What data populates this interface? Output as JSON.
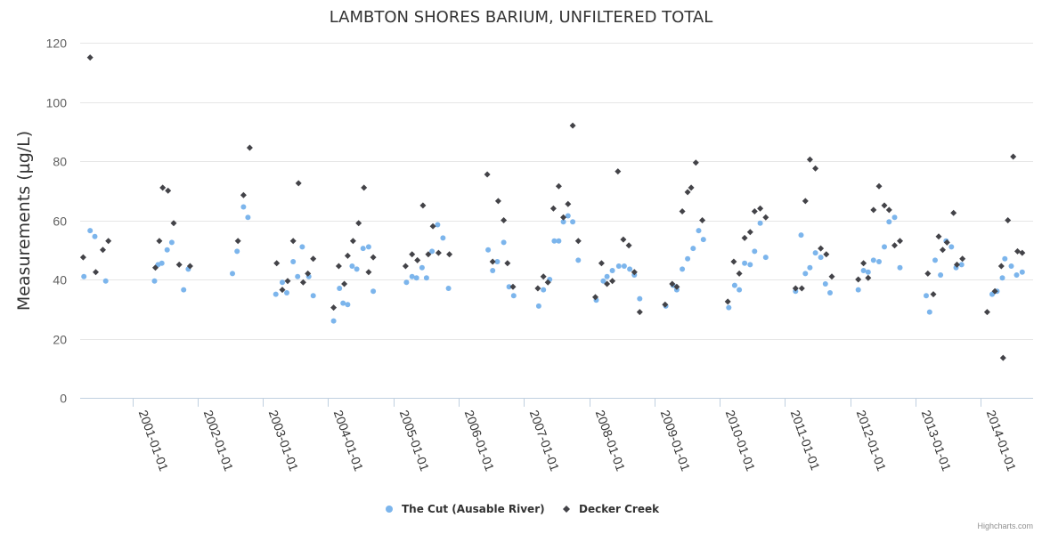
{
  "chart_data": {
    "type": "scatter",
    "title": "LAMBTON SHORES BARIUM, UNFILTERED TOTAL",
    "xlabel": "",
    "ylabel": "Measurements (µg/L)",
    "ylim": [
      0,
      120
    ],
    "yticks": [
      0,
      20,
      40,
      60,
      80,
      100,
      120
    ],
    "xlim": [
      "2000-03-15",
      "2014-10-20"
    ],
    "xticks": [
      "2001-01-01",
      "2002-01-01",
      "2003-01-01",
      "2004-01-01",
      "2005-01-01",
      "2006-01-01",
      "2007-01-01",
      "2008-01-01",
      "2009-01-01",
      "2010-01-01",
      "2011-01-01",
      "2012-01-01",
      "2013-01-01",
      "2014-01-01"
    ],
    "series": [
      {
        "name": "The Cut (Ausable River)",
        "color": "#7cb5ec",
        "marker": "circle",
        "points": [
          [
            "2000-04-05",
            41
          ],
          [
            "2000-05-10",
            56.5
          ],
          [
            "2000-06-05",
            54.5
          ],
          [
            "2000-08-05",
            39.5
          ],
          [
            "2001-05-05",
            39.5
          ],
          [
            "2001-05-25",
            45
          ],
          [
            "2001-06-15",
            45.5
          ],
          [
            "2001-07-15",
            50
          ],
          [
            "2001-08-10",
            52.5
          ],
          [
            "2001-10-15",
            36.5
          ],
          [
            "2001-11-10",
            43.5
          ],
          [
            "2002-07-15",
            42
          ],
          [
            "2002-08-10",
            49.5
          ],
          [
            "2002-09-15",
            64.5
          ],
          [
            "2002-10-10",
            61
          ],
          [
            "2003-03-15",
            35
          ],
          [
            "2003-04-20",
            39
          ],
          [
            "2003-05-15",
            35.5
          ],
          [
            "2003-06-20",
            46
          ],
          [
            "2003-07-15",
            41
          ],
          [
            "2003-08-10",
            51
          ],
          [
            "2003-09-15",
            41
          ],
          [
            "2003-10-10",
            34.5
          ],
          [
            "2004-02-01",
            26
          ],
          [
            "2004-03-05",
            37
          ],
          [
            "2004-03-25",
            32
          ],
          [
            "2004-04-20",
            31.5
          ],
          [
            "2004-05-15",
            44.5
          ],
          [
            "2004-06-10",
            43.5
          ],
          [
            "2004-07-15",
            50.5
          ],
          [
            "2004-08-15",
            51
          ],
          [
            "2004-09-10",
            36
          ],
          [
            "2005-03-15",
            39
          ],
          [
            "2005-04-15",
            41
          ],
          [
            "2005-05-10",
            40.5
          ],
          [
            "2005-06-10",
            44
          ],
          [
            "2005-07-05",
            40.5
          ],
          [
            "2005-08-05",
            49.5
          ],
          [
            "2005-09-05",
            58.5
          ],
          [
            "2005-10-05",
            54
          ],
          [
            "2005-11-05",
            37
          ],
          [
            "2006-06-15",
            50
          ],
          [
            "2006-07-10",
            43
          ],
          [
            "2006-08-05",
            46
          ],
          [
            "2006-09-10",
            52.5
          ],
          [
            "2006-10-10",
            37.5
          ],
          [
            "2006-11-05",
            34.5
          ],
          [
            "2007-03-25",
            31
          ],
          [
            "2007-04-20",
            36.5
          ],
          [
            "2007-05-25",
            40
          ],
          [
            "2007-06-20",
            53
          ],
          [
            "2007-07-15",
            53
          ],
          [
            "2007-08-10",
            59.5
          ],
          [
            "2007-09-05",
            61.5
          ],
          [
            "2007-10-01",
            59.5
          ],
          [
            "2007-11-01",
            46.5
          ],
          [
            "2008-02-10",
            33
          ],
          [
            "2008-03-20",
            39.5
          ],
          [
            "2008-04-10",
            41
          ],
          [
            "2008-05-10",
            43
          ],
          [
            "2008-06-15",
            44.5
          ],
          [
            "2008-07-15",
            44.5
          ],
          [
            "2008-08-15",
            43.5
          ],
          [
            "2008-09-10",
            41.5
          ],
          [
            "2008-10-10",
            33.5
          ],
          [
            "2009-03-05",
            31
          ],
          [
            "2009-04-15",
            38
          ],
          [
            "2009-05-05",
            36.5
          ],
          [
            "2009-06-05",
            43.5
          ],
          [
            "2009-07-05",
            47
          ],
          [
            "2009-08-05",
            50.5
          ],
          [
            "2009-09-05",
            56.5
          ],
          [
            "2009-10-01",
            53.5
          ],
          [
            "2010-02-20",
            30.5
          ],
          [
            "2010-03-25",
            38
          ],
          [
            "2010-04-20",
            36.5
          ],
          [
            "2010-05-20",
            45.5
          ],
          [
            "2010-06-20",
            45
          ],
          [
            "2010-07-15",
            49.5
          ],
          [
            "2010-08-15",
            59
          ],
          [
            "2010-09-15",
            47.5
          ],
          [
            "2011-03-01",
            36
          ],
          [
            "2011-04-01",
            55
          ],
          [
            "2011-04-25",
            42
          ],
          [
            "2011-05-20",
            44
          ],
          [
            "2011-06-20",
            49
          ],
          [
            "2011-07-20",
            47.5
          ],
          [
            "2011-08-15",
            38.5
          ],
          [
            "2011-09-10",
            35.5
          ],
          [
            "2012-02-15",
            36.5
          ],
          [
            "2012-03-15",
            43
          ],
          [
            "2012-04-10",
            42.5
          ],
          [
            "2012-05-10",
            46.5
          ],
          [
            "2012-06-10",
            46
          ],
          [
            "2012-07-10",
            51
          ],
          [
            "2012-08-05",
            59.5
          ],
          [
            "2012-09-05",
            61
          ],
          [
            "2012-10-05",
            44
          ],
          [
            "2013-03-01",
            34.5
          ],
          [
            "2013-03-20",
            29
          ],
          [
            "2013-04-20",
            46.5
          ],
          [
            "2013-05-20",
            41.5
          ],
          [
            "2013-06-20",
            53
          ],
          [
            "2013-07-20",
            51
          ],
          [
            "2013-08-15",
            44
          ],
          [
            "2013-09-15",
            45
          ],
          [
            "2014-03-05",
            35
          ],
          [
            "2014-04-01",
            36
          ],
          [
            "2014-05-01",
            40.5
          ],
          [
            "2014-05-15",
            47
          ],
          [
            "2014-06-20",
            44.5
          ],
          [
            "2014-07-20",
            41.5
          ],
          [
            "2014-08-20",
            42.5
          ]
        ]
      },
      {
        "name": "Decker Creek",
        "color": "#434348",
        "marker": "diamond",
        "points": [
          [
            "2000-04-01",
            47.5
          ],
          [
            "2000-05-10",
            115
          ],
          [
            "2000-06-10",
            42.5
          ],
          [
            "2000-07-20",
            50
          ],
          [
            "2000-08-20",
            53
          ],
          [
            "2001-05-10",
            44
          ],
          [
            "2001-06-01",
            53
          ],
          [
            "2001-06-20",
            71
          ],
          [
            "2001-07-20",
            70
          ],
          [
            "2001-08-20",
            59
          ],
          [
            "2001-09-20",
            45
          ],
          [
            "2001-11-20",
            44.5
          ],
          [
            "2002-08-15",
            53
          ],
          [
            "2002-09-15",
            68.5
          ],
          [
            "2002-10-20",
            84.5
          ],
          [
            "2003-03-20",
            45.5
          ],
          [
            "2003-04-20",
            36.5
          ],
          [
            "2003-05-20",
            39.5
          ],
          [
            "2003-06-20",
            53
          ],
          [
            "2003-07-20",
            72.5
          ],
          [
            "2003-08-15",
            39
          ],
          [
            "2003-09-10",
            42
          ],
          [
            "2003-10-10",
            47
          ],
          [
            "2004-02-01",
            30.5
          ],
          [
            "2004-03-01",
            44.5
          ],
          [
            "2004-04-01",
            38.5
          ],
          [
            "2004-04-20",
            48
          ],
          [
            "2004-05-20",
            53
          ],
          [
            "2004-06-20",
            59
          ],
          [
            "2004-07-20",
            71
          ],
          [
            "2004-08-15",
            42.5
          ],
          [
            "2004-09-10",
            47.5
          ],
          [
            "2005-03-10",
            44.5
          ],
          [
            "2005-04-15",
            48.5
          ],
          [
            "2005-05-15",
            46.5
          ],
          [
            "2005-06-15",
            65
          ],
          [
            "2005-07-15",
            48.5
          ],
          [
            "2005-08-10",
            58
          ],
          [
            "2005-09-10",
            49
          ],
          [
            "2005-11-10",
            48.5
          ],
          [
            "2006-06-10",
            75.5
          ],
          [
            "2006-07-10",
            46
          ],
          [
            "2006-08-10",
            66.5
          ],
          [
            "2006-09-10",
            60
          ],
          [
            "2006-10-01",
            45.5
          ],
          [
            "2006-11-01",
            37.5
          ],
          [
            "2007-03-20",
            37
          ],
          [
            "2007-04-20",
            41
          ],
          [
            "2007-05-15",
            39
          ],
          [
            "2007-06-15",
            64
          ],
          [
            "2007-07-15",
            71.5
          ],
          [
            "2007-08-10",
            61
          ],
          [
            "2007-09-05",
            65.5
          ],
          [
            "2007-10-01",
            92
          ],
          [
            "2007-11-01",
            53
          ],
          [
            "2008-02-05",
            34
          ],
          [
            "2008-03-10",
            45.5
          ],
          [
            "2008-04-10",
            38.5
          ],
          [
            "2008-05-10",
            39.5
          ],
          [
            "2008-06-10",
            76.5
          ],
          [
            "2008-07-10",
            53.5
          ],
          [
            "2008-08-10",
            51.5
          ],
          [
            "2008-09-10",
            42.5
          ],
          [
            "2008-10-10",
            29
          ],
          [
            "2009-03-01",
            31.5
          ],
          [
            "2009-04-10",
            38.5
          ],
          [
            "2009-05-05",
            37.5
          ],
          [
            "2009-06-05",
            63
          ],
          [
            "2009-07-05",
            69.5
          ],
          [
            "2009-07-25",
            71
          ],
          [
            "2009-08-20",
            79.5
          ],
          [
            "2009-09-25",
            60
          ],
          [
            "2010-02-15",
            32.5
          ],
          [
            "2010-03-20",
            46
          ],
          [
            "2010-04-20",
            42
          ],
          [
            "2010-05-20",
            54
          ],
          [
            "2010-06-20",
            56
          ],
          [
            "2010-07-15",
            63
          ],
          [
            "2010-08-15",
            64
          ],
          [
            "2010-09-15",
            61
          ],
          [
            "2011-03-01",
            37
          ],
          [
            "2011-04-05",
            37
          ],
          [
            "2011-04-25",
            66.5
          ],
          [
            "2011-05-20",
            80.5
          ],
          [
            "2011-06-20",
            77.5
          ],
          [
            "2011-07-20",
            50.5
          ],
          [
            "2011-08-20",
            48.5
          ],
          [
            "2011-09-20",
            41
          ],
          [
            "2012-02-15",
            40
          ],
          [
            "2012-03-15",
            45.5
          ],
          [
            "2012-04-10",
            40.5
          ],
          [
            "2012-05-10",
            63.5
          ],
          [
            "2012-06-10",
            71.5
          ],
          [
            "2012-07-10",
            65
          ],
          [
            "2012-08-05",
            63.5
          ],
          [
            "2012-09-05",
            51.5
          ],
          [
            "2012-10-05",
            53
          ],
          [
            "2013-03-10",
            42
          ],
          [
            "2013-04-10",
            35
          ],
          [
            "2013-05-10",
            54.5
          ],
          [
            "2013-06-01",
            50
          ],
          [
            "2013-06-25",
            52.5
          ],
          [
            "2013-08-01",
            62.5
          ],
          [
            "2013-08-20",
            45
          ],
          [
            "2013-09-20",
            47
          ],
          [
            "2014-02-05",
            29
          ],
          [
            "2014-03-20",
            36
          ],
          [
            "2014-04-25",
            44.5
          ],
          [
            "2014-05-05",
            13.5
          ],
          [
            "2014-06-01",
            60
          ],
          [
            "2014-07-01",
            81.5
          ],
          [
            "2014-07-25",
            49.5
          ],
          [
            "2014-08-20",
            49
          ]
        ]
      }
    ],
    "legend": "bottom-center",
    "credits": "Highcharts.com"
  }
}
